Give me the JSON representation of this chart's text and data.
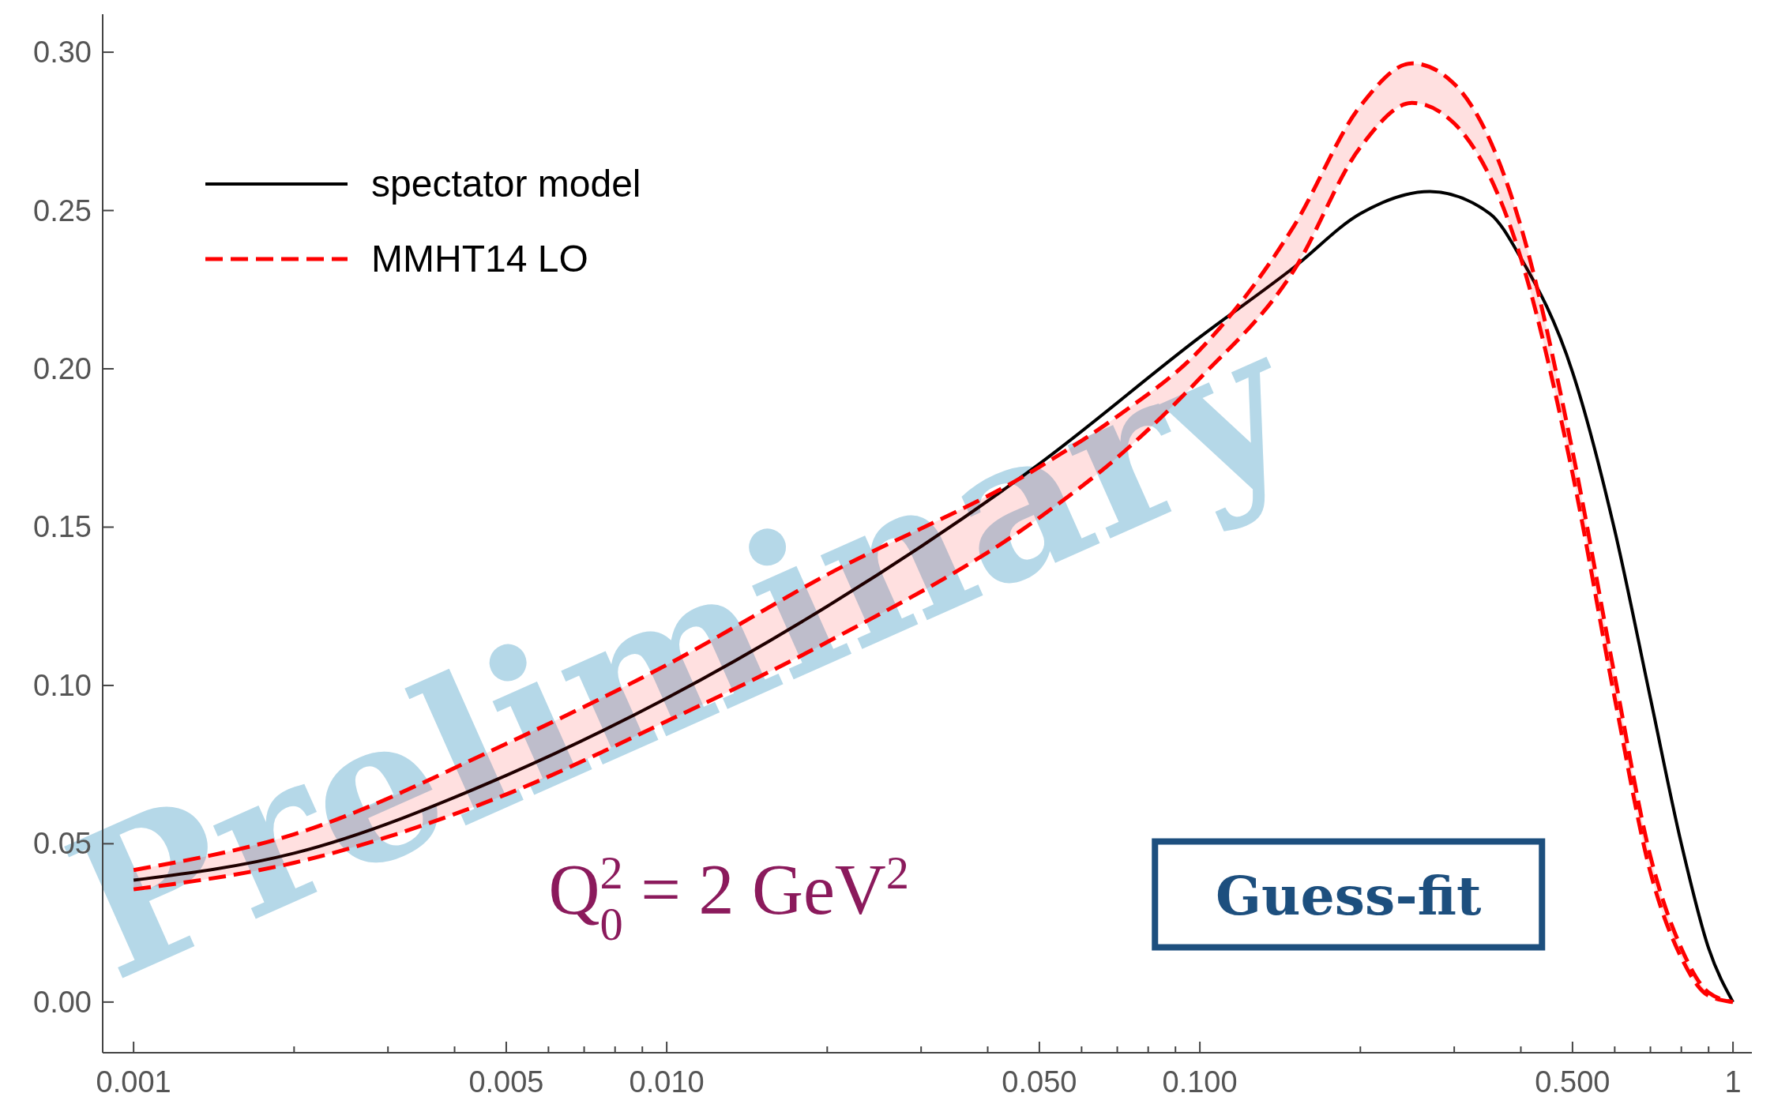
{
  "chart_data": {
    "type": "line",
    "log": "x",
    "grid": false,
    "legend": "top left",
    "xlim": [
      0.000875,
      1.085
    ],
    "ylim": [
      -0.016,
      0.312
    ],
    "xticks": [
      {
        "value": 0.001,
        "label": "0.001"
      },
      {
        "value": 0.002,
        "label": null
      },
      {
        "value": 0.003,
        "label": null
      },
      {
        "value": 0.004,
        "label": null
      },
      {
        "value": 0.005,
        "label": "0.005"
      },
      {
        "value": 0.006,
        "label": null
      },
      {
        "value": 0.007,
        "label": null
      },
      {
        "value": 0.008,
        "label": null
      },
      {
        "value": 0.009,
        "label": null
      },
      {
        "value": 0.01,
        "label": "0.010"
      },
      {
        "value": 0.02,
        "label": null
      },
      {
        "value": 0.03,
        "label": null
      },
      {
        "value": 0.04,
        "label": null
      },
      {
        "value": 0.05,
        "label": "0.050"
      },
      {
        "value": 0.06,
        "label": null
      },
      {
        "value": 0.07,
        "label": null
      },
      {
        "value": 0.08,
        "label": null
      },
      {
        "value": 0.09,
        "label": null
      },
      {
        "value": 0.1,
        "label": "0.100"
      },
      {
        "value": 0.2,
        "label": null
      },
      {
        "value": 0.3,
        "label": null
      },
      {
        "value": 0.4,
        "label": null
      },
      {
        "value": 0.5,
        "label": "0.500"
      },
      {
        "value": 0.6,
        "label": null
      },
      {
        "value": 0.7,
        "label": null
      },
      {
        "value": 0.8,
        "label": null
      },
      {
        "value": 0.9,
        "label": null
      },
      {
        "value": 1,
        "label": "1"
      }
    ],
    "yticks": [
      {
        "value": 0,
        "label": "0.00"
      },
      {
        "value": 0.05,
        "label": "0.05"
      },
      {
        "value": 0.1,
        "label": "0.10"
      },
      {
        "value": 0.15,
        "label": "0.15"
      },
      {
        "value": 0.2,
        "label": "0.20"
      },
      {
        "value": 0.25,
        "label": "0.25"
      },
      {
        "value": 0.3,
        "label": "0.30"
      }
    ],
    "x": [
      0.001,
      0.002,
      0.005,
      0.01,
      0.02,
      0.05,
      0.07,
      0.1,
      0.15,
      0.2,
      0.25,
      0.3,
      0.4,
      0.5,
      0.6,
      0.7,
      0.8,
      0.9,
      1
    ],
    "series": [
      {
        "name": "spectator model",
        "color": "#000000",
        "line_style": "solid",
        "x": [
          0.001,
          0.002,
          0.005,
          0.01,
          0.02,
          0.05,
          0.1,
          0.15,
          0.2,
          0.27,
          0.35,
          0.4,
          0.5,
          0.6,
          0.7,
          0.8,
          0.9,
          1
        ],
        "values": [
          0.0385,
          0.047,
          0.0716,
          0.096,
          0.125,
          0.17,
          0.21,
          0.232,
          0.249,
          0.256,
          0.249,
          0.235,
          0.199,
          0.149,
          0.096,
          0.05,
          0.017,
          0
        ]
      },
      {
        "name": "MMHT14 LO",
        "color": "#ff0000",
        "line_style": "dashed",
        "values": [
          0.0417,
          0.053,
          0.0816,
          0.1065,
          0.135,
          0.169,
          0.185,
          0.206,
          0.245,
          0.283,
          0.2965,
          0.29,
          0.245,
          0.174,
          0.103,
          0.046,
          0.017,
          0.003,
          0
        ]
      },
      {
        "color": "#ff0000",
        "line_style": "dashed",
        "values": [
          0.0356,
          0.044,
          0.0656,
          0.0887,
          0.1137,
          0.153,
          0.172,
          0.197,
          0.231,
          0.27,
          0.284,
          0.2775,
          0.235,
          0.167,
          0.096,
          0.041,
          0.014,
          0.002,
          0
        ]
      }
    ],
    "annotations": [
      "Preliminary",
      "Q$_{0}$$^{2}$ = 2 GeV$^{2}$",
      "Guess-fit"
    ]
  }
}
